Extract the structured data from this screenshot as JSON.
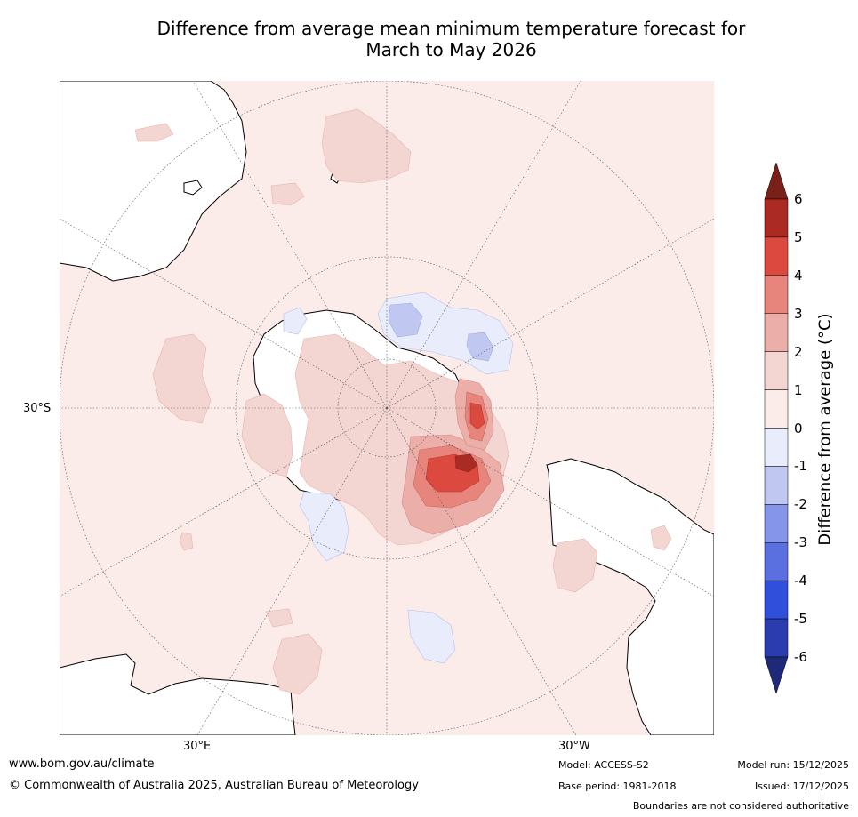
{
  "title": {
    "line1": "Difference from average mean minimum temperature forecast for",
    "line2": "March to May 2026"
  },
  "map": {
    "projection": "south-polar-stereographic",
    "lat_label": "30°S",
    "lon_labels": [
      "30°E",
      "30°W"
    ],
    "colors": {
      "ocean_base": "#fbebe9",
      "land": "#ffffff",
      "anom_0_1": "#fbebe9",
      "anom_1_2": "#f3d6d2",
      "anom_2_3": "#ebaea8",
      "anom_3_4": "#e7857d",
      "anom_4_5": "#dc4a3f",
      "anom_5_6": "#ab2b24",
      "anom_m1_0": "#e9ecfb",
      "anom_m2_m1": "#c0c8f2"
    }
  },
  "colorbar": {
    "label": "Difference from average (°C)",
    "ticks": [
      "6",
      "5",
      "4",
      "3",
      "2",
      "1",
      "0",
      "-1",
      "-2",
      "-3",
      "-4",
      "-5",
      "-6"
    ],
    "bins": [
      {
        "range": "5 to 6",
        "color": "#ab2b24"
      },
      {
        "range": "4 to 5",
        "color": "#dc4a3f"
      },
      {
        "range": "3 to 4",
        "color": "#e7857d"
      },
      {
        "range": "2 to 3",
        "color": "#ebaea8"
      },
      {
        "range": "1 to 2",
        "color": "#f3d6d2"
      },
      {
        "range": "0 to 1",
        "color": "#fbebe9"
      },
      {
        "range": "-1 to 0",
        "color": "#e9ecfb"
      },
      {
        "range": "-2 to -1",
        "color": "#c0c8f2"
      },
      {
        "range": "-3 to -2",
        "color": "#8595ea"
      },
      {
        "range": "-4 to -3",
        "color": "#5a70e0"
      },
      {
        "range": "-5 to -4",
        "color": "#3050dc"
      },
      {
        "range": "-6 to -5",
        "color": "#2a3cb0"
      }
    ],
    "over_color": "#7b1f19",
    "under_color": "#1e2a78"
  },
  "footer": {
    "url": "www.bom.gov.au/climate",
    "copyright": "© Commonwealth of Australia 2025, Australian Bureau of Meteorology",
    "model": "Model: ACCESS-S2",
    "base_period": "Base period: 1981-2018",
    "model_run": "Model run: 15/12/2025",
    "issued": "Issued: 17/12/2025",
    "disclaimer": "Boundaries are not considered authoritative"
  }
}
